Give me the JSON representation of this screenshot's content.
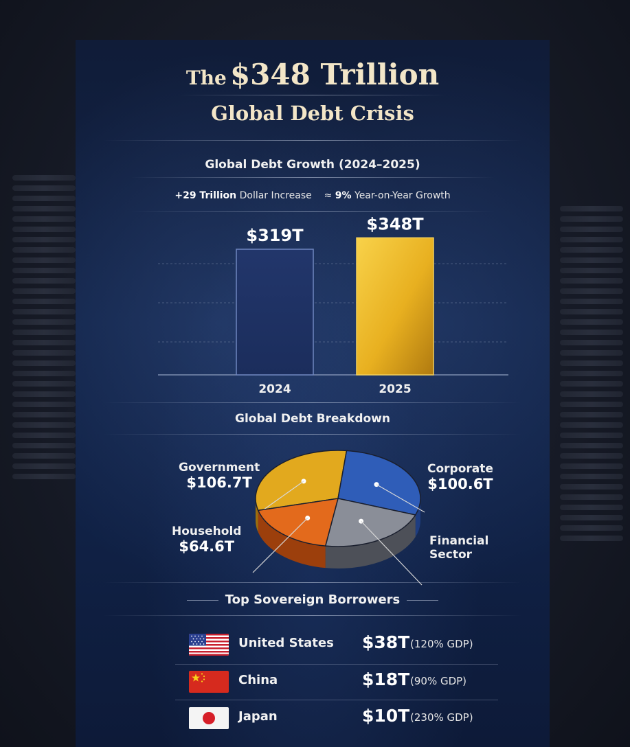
{
  "header": {
    "title_prefix": "The",
    "title_main": "$348 Trillion",
    "subtitle": "Global Debt Crisis"
  },
  "growth": {
    "section_title": "Global Debt Growth (2024–2025)",
    "stat1_value": "+29 Trillion",
    "stat1_label": "Dollar Increase",
    "stat2_prefix": "≈",
    "stat2_value": "9%",
    "stat2_label": "Year-on-Year Growth"
  },
  "breakdown": {
    "section_title": "Global Debt Breakdown"
  },
  "sovereign": {
    "section_title": "Top Sovereign Borrowers",
    "rows": [
      {
        "country": "United States",
        "amount": "$38T",
        "gdp": "(120% GDP)",
        "flag_icon": "us-flag-icon"
      },
      {
        "country": "China",
        "amount": "$18T",
        "gdp": "(90% GDP)",
        "flag_icon": "china-flag-icon"
      },
      {
        "country": "Japan",
        "amount": "$10T",
        "gdp": "(230% GDP)",
        "flag_icon": "japan-flag-icon"
      }
    ]
  },
  "colors": {
    "gold": "#e8b020",
    "navy_bar": "#1b2d5c",
    "government": "#e2a91e",
    "corporate": "#2f5db8",
    "household": "#e36a1c",
    "financial": "#8a8e98"
  },
  "chart_data": [
    {
      "type": "bar",
      "title": "Global Debt Growth (2024–2025)",
      "categories": [
        "2024",
        "2025"
      ],
      "values": [
        319,
        348
      ],
      "value_labels": [
        "$319T",
        "$348T"
      ],
      "ylim": [
        0,
        380
      ],
      "grid": true
    },
    {
      "type": "pie",
      "title": "Global Debt Breakdown",
      "slices": [
        {
          "name": "Government",
          "value": 106.7,
          "label": "$106.7T"
        },
        {
          "name": "Corporate",
          "value": 100.6,
          "label": "$100.6T"
        },
        {
          "name": "Financial Sector",
          "value": 76.1,
          "label": ""
        },
        {
          "name": "Household",
          "value": 64.6,
          "label": "$64.6T"
        }
      ]
    }
  ]
}
